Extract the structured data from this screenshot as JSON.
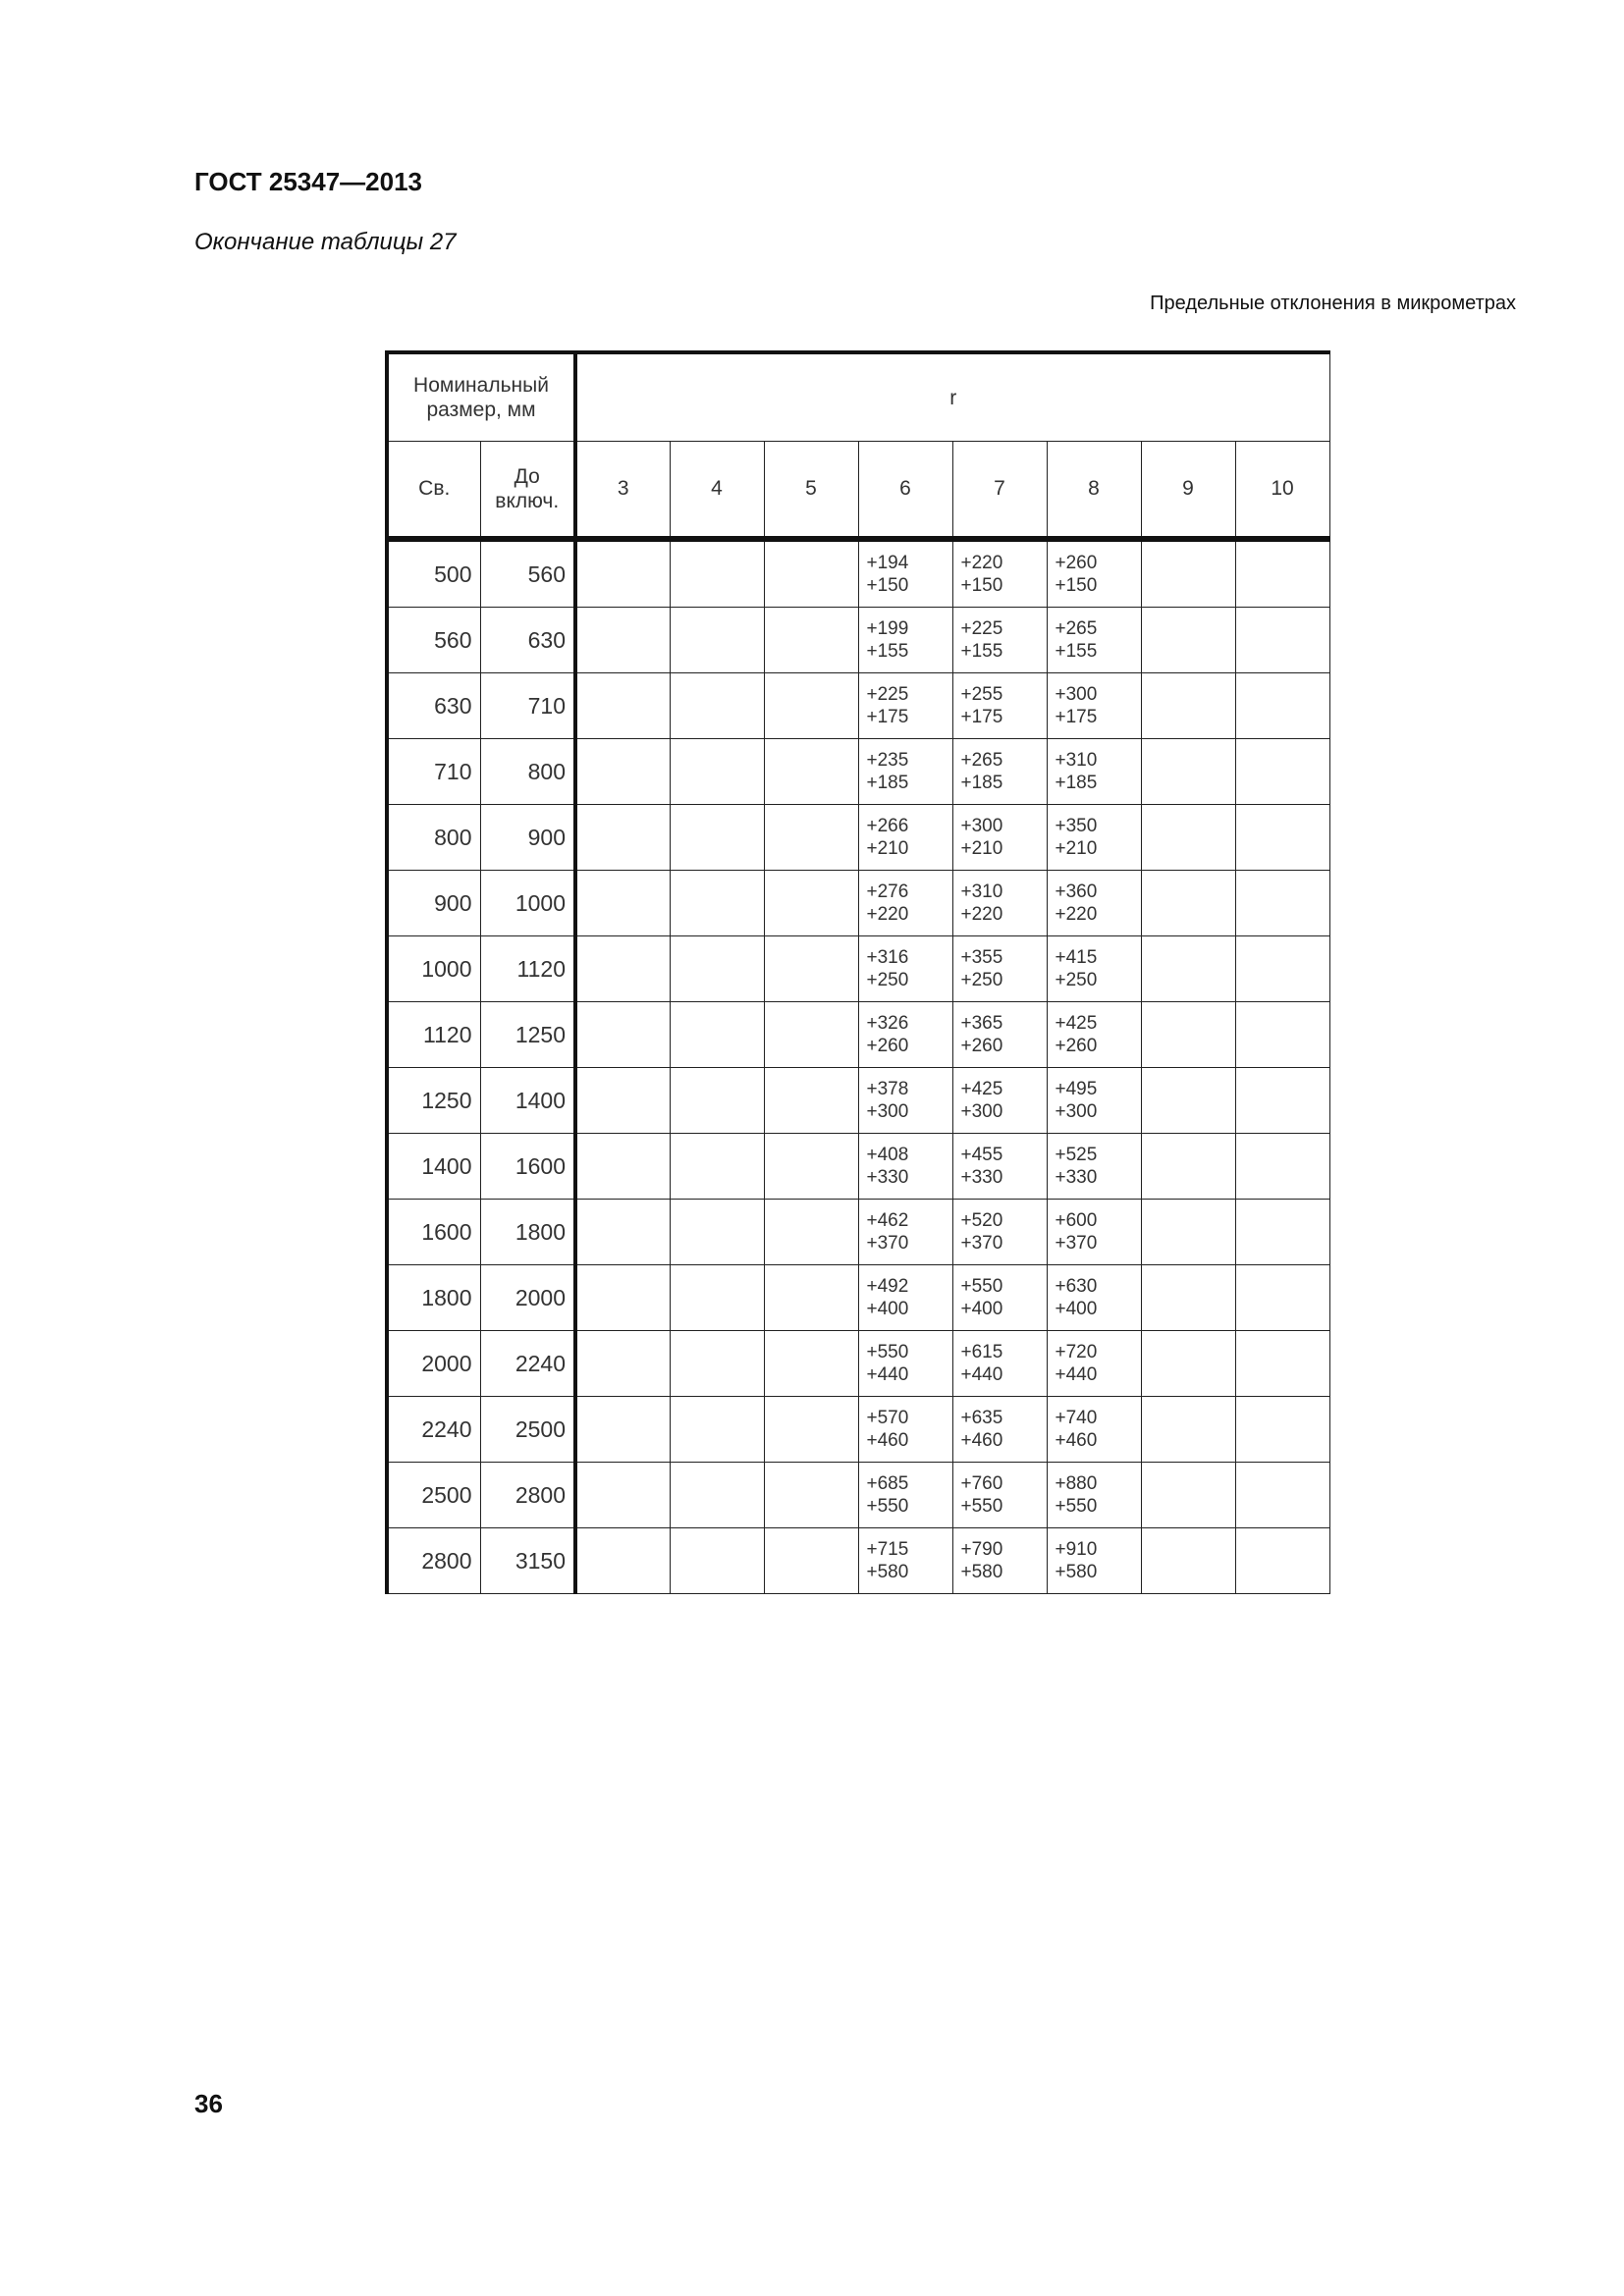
{
  "header": {
    "doc_title": "ГОСТ 25347—2013",
    "subtitle": "Окончание таблицы 27",
    "units": "Предельные отклонения в микрометрах"
  },
  "table": {
    "nominal_header": "Номинальный размер, мм",
    "field_header": "r",
    "col_from": "Св.",
    "col_to": "До включ.",
    "grades": [
      "3",
      "4",
      "5",
      "6",
      "7",
      "8",
      "9",
      "10"
    ],
    "rows": [
      {
        "from": "500",
        "to": "560",
        "g6": [
          "+194",
          "+150"
        ],
        "g7": [
          "+220",
          "+150"
        ],
        "g8": [
          "+260",
          "+150"
        ]
      },
      {
        "from": "560",
        "to": "630",
        "g6": [
          "+199",
          "+155"
        ],
        "g7": [
          "+225",
          "+155"
        ],
        "g8": [
          "+265",
          "+155"
        ]
      },
      {
        "from": "630",
        "to": "710",
        "g6": [
          "+225",
          "+175"
        ],
        "g7": [
          "+255",
          "+175"
        ],
        "g8": [
          "+300",
          "+175"
        ]
      },
      {
        "from": "710",
        "to": "800",
        "g6": [
          "+235",
          "+185"
        ],
        "g7": [
          "+265",
          "+185"
        ],
        "g8": [
          "+310",
          "+185"
        ]
      },
      {
        "from": "800",
        "to": "900",
        "g6": [
          "+266",
          "+210"
        ],
        "g7": [
          "+300",
          "+210"
        ],
        "g8": [
          "+350",
          "+210"
        ]
      },
      {
        "from": "900",
        "to": "1000",
        "g6": [
          "+276",
          "+220"
        ],
        "g7": [
          "+310",
          "+220"
        ],
        "g8": [
          "+360",
          "+220"
        ]
      },
      {
        "from": "1000",
        "to": "1120",
        "g6": [
          "+316",
          "+250"
        ],
        "g7": [
          "+355",
          "+250"
        ],
        "g8": [
          "+415",
          "+250"
        ]
      },
      {
        "from": "1120",
        "to": "1250",
        "g6": [
          "+326",
          "+260"
        ],
        "g7": [
          "+365",
          "+260"
        ],
        "g8": [
          "+425",
          "+260"
        ]
      },
      {
        "from": "1250",
        "to": "1400",
        "g6": [
          "+378",
          "+300"
        ],
        "g7": [
          "+425",
          "+300"
        ],
        "g8": [
          "+495",
          "+300"
        ]
      },
      {
        "from": "1400",
        "to": "1600",
        "g6": [
          "+408",
          "+330"
        ],
        "g7": [
          "+455",
          "+330"
        ],
        "g8": [
          "+525",
          "+330"
        ]
      },
      {
        "from": "1600",
        "to": "1800",
        "g6": [
          "+462",
          "+370"
        ],
        "g7": [
          "+520",
          "+370"
        ],
        "g8": [
          "+600",
          "+370"
        ]
      },
      {
        "from": "1800",
        "to": "2000",
        "g6": [
          "+492",
          "+400"
        ],
        "g7": [
          "+550",
          "+400"
        ],
        "g8": [
          "+630",
          "+400"
        ]
      },
      {
        "from": "2000",
        "to": "2240",
        "g6": [
          "+550",
          "+440"
        ],
        "g7": [
          "+615",
          "+440"
        ],
        "g8": [
          "+720",
          "+440"
        ]
      },
      {
        "from": "2240",
        "to": "2500",
        "g6": [
          "+570",
          "+460"
        ],
        "g7": [
          "+635",
          "+460"
        ],
        "g8": [
          "+740",
          "+460"
        ]
      },
      {
        "from": "2500",
        "to": "2800",
        "g6": [
          "+685",
          "+550"
        ],
        "g7": [
          "+760",
          "+550"
        ],
        "g8": [
          "+880",
          "+550"
        ]
      },
      {
        "from": "2800",
        "to": "3150",
        "g6": [
          "+715",
          "+580"
        ],
        "g7": [
          "+790",
          "+580"
        ],
        "g8": [
          "+910",
          "+580"
        ]
      }
    ]
  },
  "footer": {
    "page_number": "36"
  }
}
